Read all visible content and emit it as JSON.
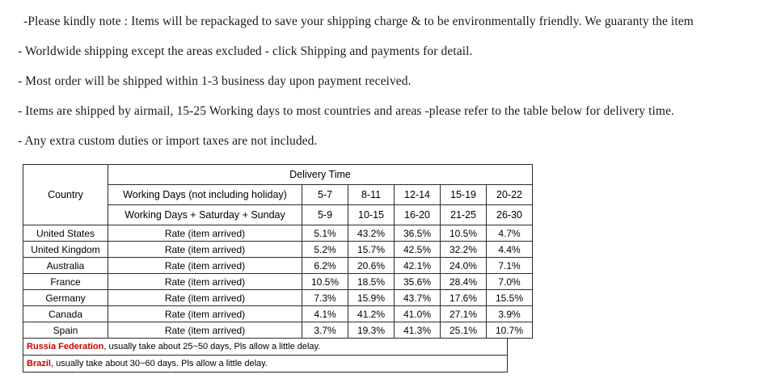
{
  "notes": [
    "-Please kindly note : Items will be repackaged to save your shipping charge & to be environmentally friendly. We guaranty the item",
    "- Worldwide shipping except the areas excluded - click Shipping and payments for detail.",
    "- Most order will be shipped within 1-3 business day upon payment received.",
    "- Items are shipped by airmail, 15-25 Working days to most countries and areas -please refer to the table below for delivery time.",
    "- Any extra custom duties or import taxes are not included."
  ],
  "table": {
    "title": "Delivery Time",
    "country_header": "Country",
    "rate_label": "Rate (item arrived)",
    "header_rows": [
      {
        "label": "Working Days (not including holiday)",
        "values": [
          "5-7",
          "8-11",
          "12-14",
          "15-19",
          "20-22"
        ]
      },
      {
        "label": "Working Days + Saturday + Sunday",
        "values": [
          "5-9",
          "10-15",
          "16-20",
          "21-25",
          "26-30"
        ]
      }
    ],
    "rows": [
      {
        "country": "United States",
        "rates": [
          "5.1%",
          "43.2%",
          "36.5%",
          "10.5%",
          "4.7%"
        ]
      },
      {
        "country": "United Kingdom",
        "rates": [
          "5.2%",
          "15.7%",
          "42.5%",
          "32.2%",
          "4.4%"
        ]
      },
      {
        "country": "Australia",
        "rates": [
          "6.2%",
          "20.6%",
          "42.1%",
          "24.0%",
          "7.1%"
        ]
      },
      {
        "country": "France",
        "rates": [
          "10.5%",
          "18.5%",
          "35.6%",
          "28.4%",
          "7.0%"
        ]
      },
      {
        "country": "Germany",
        "rates": [
          "7.3%",
          "15.9%",
          "43.7%",
          "17.6%",
          "15.5%"
        ]
      },
      {
        "country": "Canada",
        "rates": [
          "4.1%",
          "41.2%",
          "41.0%",
          "27.1%",
          "3.9%"
        ]
      },
      {
        "country": "Spain",
        "rates": [
          "3.7%",
          "19.3%",
          "41.3%",
          "25.1%",
          "10.7%"
        ]
      }
    ]
  },
  "footnotes": [
    {
      "highlight": "Russia Federation",
      "rest": ", usually take about 25~50 days, Pls allow a little delay."
    },
    {
      "highlight": "Brazil",
      "rest": ", usually take about 30~60 days. Pls allow a little delay."
    }
  ],
  "colors": {
    "highlight": "#cc0000",
    "text": "#000000",
    "border": "#2a2a2a",
    "background": "#ffffff"
  }
}
